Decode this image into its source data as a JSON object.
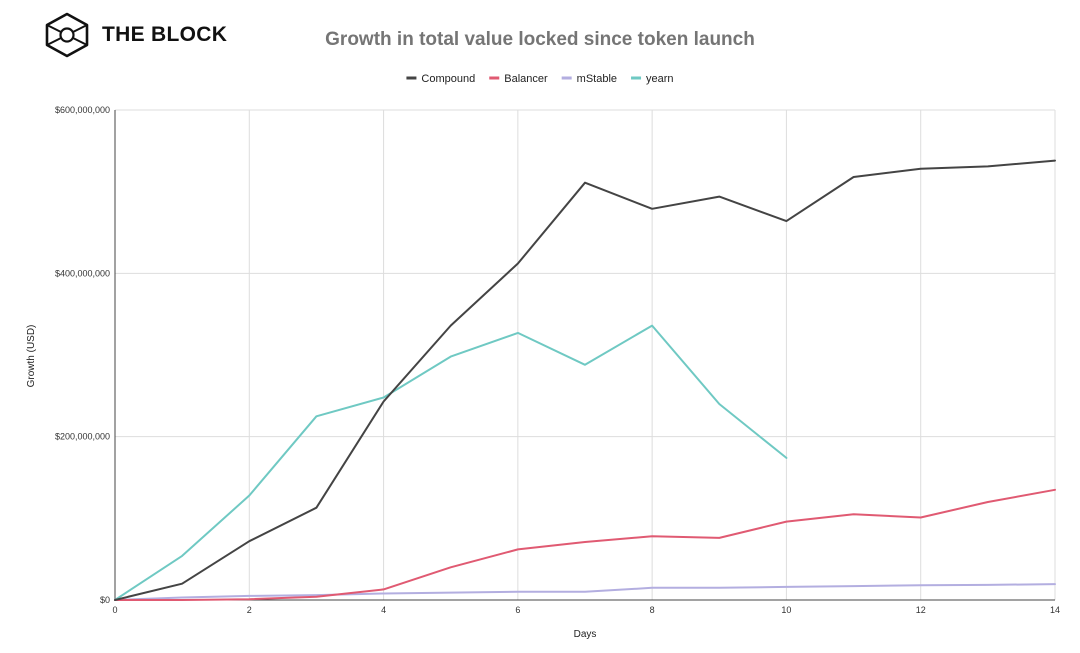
{
  "brand": {
    "name": "THE BLOCK",
    "logo_icon": "cube-logo-icon"
  },
  "chart_data": {
    "type": "line",
    "title": "Growth in total value locked since token launch",
    "xlabel": "Days",
    "ylabel": "Growth (USD)",
    "xlim": [
      0,
      14
    ],
    "ylim": [
      0,
      600000000
    ],
    "x_ticks": [
      0,
      2,
      4,
      6,
      8,
      10,
      12,
      14
    ],
    "x_tick_labels": [
      "0",
      "2",
      "4",
      "6",
      "8",
      "10",
      "12",
      "14"
    ],
    "y_ticks": [
      0,
      200000000,
      400000000,
      600000000
    ],
    "y_tick_labels": [
      "$0",
      "$200,000,000",
      "$400,000,000",
      "$600,000,000"
    ],
    "grid": true,
    "legend_position": "top-center",
    "series": [
      {
        "name": "Compound",
        "color": "#444444",
        "x": [
          0,
          1,
          2,
          3,
          4,
          5,
          6,
          7,
          8,
          9,
          10,
          11,
          12,
          13,
          14
        ],
        "values": [
          0,
          20000000,
          72000000,
          113000000,
          243000000,
          336000000,
          412000000,
          511000000,
          479000000,
          494000000,
          464000000,
          518000000,
          528000000,
          531000000,
          538000000
        ]
      },
      {
        "name": "Balancer",
        "color": "#e05a72",
        "x": [
          0,
          1,
          2,
          3,
          4,
          5,
          6,
          7,
          8,
          9,
          10,
          11,
          12,
          13,
          14
        ],
        "values": [
          0,
          0,
          1000000,
          4000000,
          13000000,
          40000000,
          62000000,
          71000000,
          78000000,
          76000000,
          96000000,
          105000000,
          101000000,
          120000000,
          135000000
        ]
      },
      {
        "name": "mStable",
        "color": "#b3aee0",
        "x": [
          0,
          1,
          2,
          3,
          4,
          5,
          6,
          7,
          8,
          9,
          10,
          11,
          12,
          13,
          14
        ],
        "values": [
          0,
          3000000,
          5000000,
          6000000,
          8000000,
          9000000,
          10000000,
          10000000,
          15000000,
          15000000,
          16000000,
          17000000,
          18000000,
          18500000,
          19500000
        ]
      },
      {
        "name": "yearn",
        "color": "#6fc9c3",
        "x": [
          0,
          1,
          2,
          3,
          4,
          5,
          6,
          7,
          8,
          9,
          10
        ],
        "values": [
          0,
          54000000,
          128000000,
          225000000,
          248000000,
          298000000,
          327000000,
          288000000,
          336000000,
          240000000,
          174000000
        ]
      }
    ]
  }
}
